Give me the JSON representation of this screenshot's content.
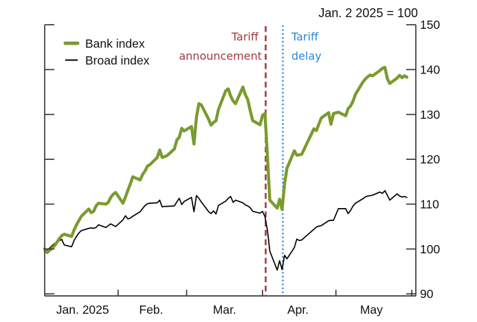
{
  "chart_data": {
    "type": "line",
    "title": "Jan. 2 2025 = 100",
    "x_axis": {
      "tick_labels": [
        "Jan. 2025",
        "Feb.",
        "Mar.",
        "Apr.",
        "May"
      ],
      "tick_doys": [
        32,
        60,
        91,
        121,
        152
      ],
      "label_doys": [
        17.5,
        45.5,
        75.5,
        105.5,
        135.5
      ]
    },
    "y_axis": {
      "side": "right",
      "lim": [
        90,
        150
      ],
      "ticks": [
        90,
        100,
        110,
        120,
        130,
        140,
        150
      ]
    },
    "legend": {
      "position": "top-left",
      "entries": [
        {
          "name": "Bank index",
          "color": "#7a9b2f"
        },
        {
          "name": "Broad index",
          "color": "#000000"
        }
      ]
    },
    "annotations": [
      {
        "id": "tariff-announcement",
        "line1": "Tariff",
        "line2": "announcement",
        "color": "#9e3a3a",
        "style": "dashed",
        "x_doy": 92.3
      },
      {
        "id": "tariff-delay",
        "line1": "Tariff",
        "line2": "delay",
        "color": "#2e86d8",
        "style": "dotted",
        "x_doy": 99.3
      }
    ],
    "series": [
      {
        "name": "Broad index",
        "color": "#000000",
        "width": 1.7,
        "points": [
          [
            2,
            100
          ],
          [
            3,
            99.7
          ],
          [
            6,
            101.2
          ],
          [
            7,
            101.6
          ],
          [
            8,
            101.9
          ],
          [
            9,
            102.1
          ],
          [
            10,
            100.9
          ],
          [
            13,
            100.5
          ],
          [
            14,
            101.9
          ],
          [
            15,
            102.8
          ],
          [
            16,
            103.6
          ],
          [
            17,
            104.1
          ],
          [
            20,
            104.6
          ],
          [
            21,
            104.7
          ],
          [
            22,
            104.6
          ],
          [
            23,
            104.8
          ],
          [
            24,
            105.4
          ],
          [
            27,
            104.8
          ],
          [
            28,
            105.2
          ],
          [
            29,
            105.6
          ],
          [
            30,
            105.3
          ],
          [
            31,
            105.0
          ],
          [
            34,
            106.5
          ],
          [
            35,
            107.4
          ],
          [
            36,
            106.7
          ],
          [
            37,
            106.9
          ],
          [
            38,
            107.3
          ],
          [
            41,
            108.3
          ],
          [
            42,
            109.0
          ],
          [
            43,
            109.7
          ],
          [
            44,
            110.1
          ],
          [
            45,
            110.2
          ],
          [
            48,
            110.3
          ],
          [
            49,
            110.9
          ],
          [
            50,
            109.4
          ],
          [
            51,
            109.5
          ],
          [
            52,
            109.5
          ],
          [
            55,
            109.6
          ],
          [
            56,
            110.5
          ],
          [
            57,
            111.3
          ],
          [
            58,
            109.9
          ],
          [
            59,
            110.6
          ],
          [
            62,
            111.5
          ],
          [
            63,
            108.3
          ],
          [
            64,
            111.9
          ],
          [
            65,
            111.3
          ],
          [
            66,
            110.5
          ],
          [
            69,
            108.3
          ],
          [
            70,
            107.9
          ],
          [
            71,
            108.5
          ],
          [
            72,
            107.8
          ],
          [
            73,
            109.7
          ],
          [
            76,
            110.7
          ],
          [
            77,
            111.3
          ],
          [
            78,
            111.7
          ],
          [
            79,
            110.4
          ],
          [
            80,
            110.9
          ],
          [
            83,
            110.3
          ],
          [
            84,
            109.8
          ],
          [
            85,
            109.6
          ],
          [
            86,
            109.2
          ],
          [
            87,
            108.4
          ],
          [
            90,
            108.0
          ],
          [
            91,
            108.4
          ],
          [
            92,
            107.2
          ],
          [
            93,
            104.3
          ],
          [
            94,
            99.5
          ],
          [
            97,
            95.3
          ],
          [
            98,
            97.4
          ],
          [
            99,
            95.4
          ],
          [
            100,
            98.6
          ],
          [
            101,
            97.8
          ],
          [
            104,
            100.3
          ],
          [
            105,
            102.2
          ],
          [
            106,
            101.9
          ],
          [
            107,
            102.0
          ],
          [
            112,
            104.4
          ],
          [
            113,
            104.9
          ],
          [
            114,
            105.1
          ],
          [
            115,
            105.2
          ],
          [
            118,
            106.3
          ],
          [
            119,
            106.4
          ],
          [
            120,
            106.4
          ],
          [
            122,
            109.0
          ],
          [
            125,
            109.0
          ],
          [
            126,
            107.9
          ],
          [
            127,
            108.6
          ],
          [
            128,
            109.6
          ],
          [
            129,
            110.2
          ],
          [
            132,
            111.2
          ],
          [
            133,
            111.6
          ],
          [
            134,
            111.8
          ],
          [
            135,
            111.9
          ],
          [
            136,
            112.0
          ],
          [
            139,
            112.7
          ],
          [
            140,
            112.4
          ],
          [
            141,
            113.0
          ],
          [
            142,
            112.0
          ],
          [
            143,
            110.9
          ],
          [
            146,
            112.3
          ],
          [
            147,
            111.8
          ],
          [
            148,
            111.6
          ],
          [
            149,
            111.7
          ],
          [
            150,
            111.5
          ]
        ]
      },
      {
        "name": "Bank index",
        "color": "#7a9b2f",
        "width": 4.4,
        "points": [
          [
            2,
            100
          ],
          [
            3,
            99.2
          ],
          [
            6,
            100.7
          ],
          [
            7,
            101.5
          ],
          [
            8,
            102.3
          ],
          [
            9,
            103.0
          ],
          [
            10,
            103.3
          ],
          [
            13,
            102.8
          ],
          [
            14,
            104.2
          ],
          [
            15,
            105.4
          ],
          [
            16,
            106.4
          ],
          [
            17,
            107.3
          ],
          [
            20,
            108.9
          ],
          [
            21,
            108.1
          ],
          [
            22,
            108.4
          ],
          [
            23,
            109.6
          ],
          [
            24,
            110.2
          ],
          [
            27,
            110.0
          ],
          [
            28,
            110.4
          ],
          [
            29,
            111.5
          ],
          [
            30,
            112.2
          ],
          [
            31,
            112.6
          ],
          [
            34,
            110.2
          ],
          [
            35,
            111.6
          ],
          [
            36,
            113.1
          ],
          [
            37,
            114.5
          ],
          [
            38,
            116.1
          ],
          [
            41,
            115.4
          ],
          [
            42,
            116.6
          ],
          [
            43,
            117.4
          ],
          [
            44,
            118.5
          ],
          [
            45,
            118.8
          ],
          [
            48,
            120.4
          ],
          [
            49,
            122.1
          ],
          [
            50,
            120.4
          ],
          [
            51,
            120.6
          ],
          [
            52,
            120.8
          ],
          [
            55,
            122.3
          ],
          [
            56,
            124.3
          ],
          [
            57,
            124.9
          ],
          [
            58,
            126.9
          ],
          [
            59,
            126.3
          ],
          [
            62,
            127.3
          ],
          [
            63,
            123.4
          ],
          [
            64,
            129.3
          ],
          [
            65,
            132.4
          ],
          [
            66,
            132.1
          ],
          [
            69,
            128.9
          ],
          [
            70,
            127.6
          ],
          [
            71,
            128.2
          ],
          [
            72,
            128.6
          ],
          [
            73,
            131.1
          ],
          [
            76,
            135.3
          ],
          [
            77,
            135.7
          ],
          [
            78,
            134.1
          ],
          [
            79,
            133.0
          ],
          [
            80,
            132.4
          ],
          [
            83,
            136.1
          ],
          [
            84,
            134.4
          ],
          [
            85,
            133.3
          ],
          [
            86,
            130.8
          ],
          [
            87,
            128.6
          ],
          [
            90,
            127.7
          ],
          [
            91,
            129.8
          ],
          [
            92,
            130.2
          ],
          [
            93,
            121.0
          ],
          [
            94,
            110.9
          ],
          [
            97,
            109.1
          ],
          [
            98,
            111.1
          ],
          [
            99,
            108.8
          ],
          [
            100,
            114.5
          ],
          [
            101,
            118.0
          ],
          [
            104,
            121.9
          ],
          [
            105,
            120.9
          ],
          [
            106,
            121.0
          ],
          [
            107,
            121.1
          ],
          [
            112,
            126.8
          ],
          [
            113,
            126.4
          ],
          [
            114,
            127.8
          ],
          [
            115,
            129.2
          ],
          [
            118,
            130.4
          ],
          [
            119,
            127.8
          ],
          [
            120,
            130.2
          ],
          [
            122,
            130.5
          ],
          [
            125,
            129.7
          ],
          [
            126,
            131.3
          ],
          [
            127,
            131.9
          ],
          [
            128,
            133.0
          ],
          [
            129,
            134.5
          ],
          [
            132,
            137.2
          ],
          [
            133,
            137.9
          ],
          [
            134,
            138.4
          ],
          [
            135,
            138.8
          ],
          [
            136,
            138.6
          ],
          [
            139,
            139.8
          ],
          [
            140,
            140.3
          ],
          [
            141,
            140.5
          ],
          [
            142,
            138.0
          ],
          [
            143,
            136.9
          ],
          [
            146,
            138.1
          ],
          [
            147,
            138.7
          ],
          [
            148,
            138.2
          ],
          [
            149,
            138.6
          ],
          [
            150,
            138.3
          ]
        ]
      }
    ]
  }
}
